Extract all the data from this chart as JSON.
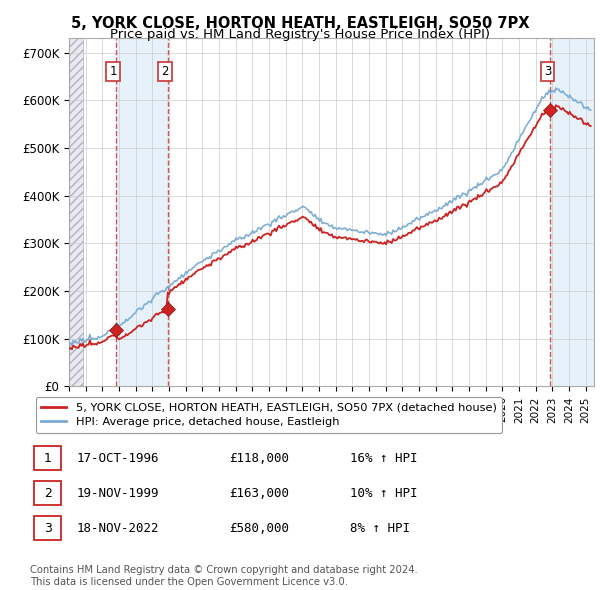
{
  "title": "5, YORK CLOSE, HORTON HEATH, EASTLEIGH, SO50 7PX",
  "subtitle": "Price paid vs. HM Land Registry's House Price Index (HPI)",
  "ylim": [
    0,
    730000
  ],
  "yticks": [
    0,
    100000,
    200000,
    300000,
    400000,
    500000,
    600000,
    700000
  ],
  "ytick_labels": [
    "£0",
    "£100K",
    "£200K",
    "£300K",
    "£400K",
    "£500K",
    "£600K",
    "£700K"
  ],
  "xlim_start": 1994.0,
  "xlim_end": 2025.5,
  "sale_dates": [
    1996.8,
    1999.92,
    2022.88
  ],
  "sale_prices": [
    118000,
    163000,
    580000
  ],
  "sale_labels": [
    "1",
    "2",
    "3"
  ],
  "hpi_color": "#7aaad0",
  "price_color": "#cc2222",
  "vline_color": "#cc4444",
  "shade_color": "#d8e8f5",
  "legend_label_price": "5, YORK CLOSE, HORTON HEATH, EASTLEIGH, SO50 7PX (detached house)",
  "legend_label_hpi": "HPI: Average price, detached house, Eastleigh",
  "table_data": [
    [
      "1",
      "17-OCT-1996",
      "£118,000",
      "16% ↑ HPI"
    ],
    [
      "2",
      "19-NOV-1999",
      "£163,000",
      "10% ↑ HPI"
    ],
    [
      "3",
      "18-NOV-2022",
      "£580,000",
      "8% ↑ HPI"
    ]
  ],
  "footnote": "Contains HM Land Registry data © Crown copyright and database right 2024.\nThis data is licensed under the Open Government Licence v3.0.",
  "title_fontsize": 10.5,
  "subtitle_fontsize": 9.5
}
